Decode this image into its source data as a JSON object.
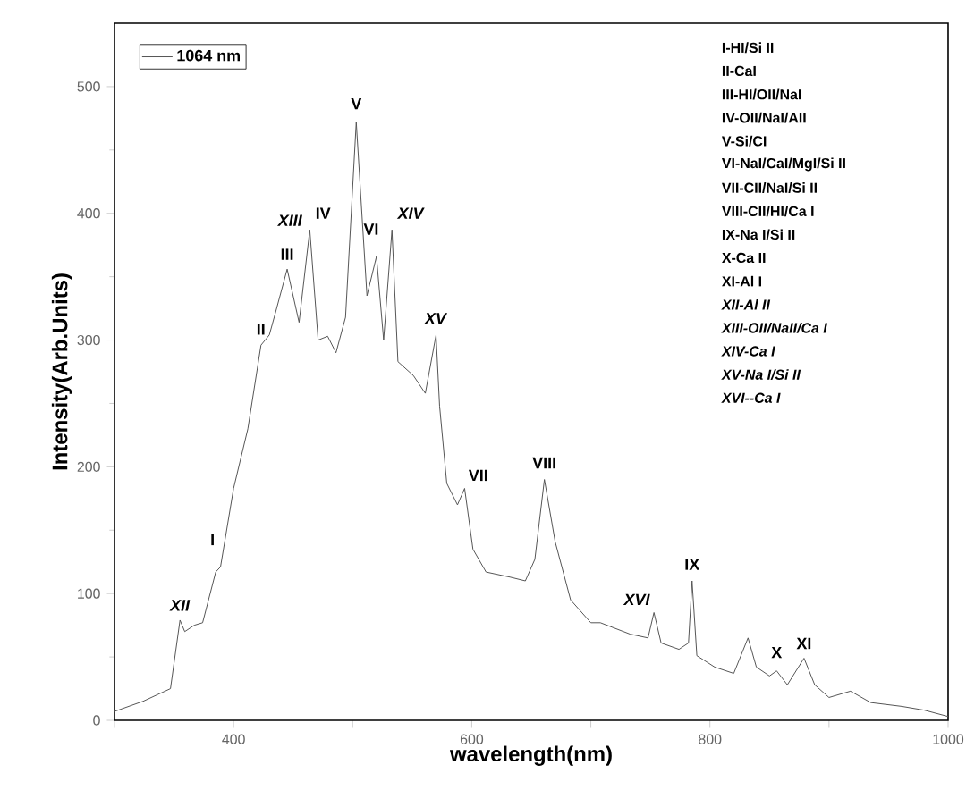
{
  "chart_data": {
    "type": "line",
    "xlabel": "wavelength(nm)",
    "ylabel": "Intensity(Arb.Units)",
    "xlim": [
      300,
      1000
    ],
    "ylim": [
      0,
      550
    ],
    "xticks": [
      {
        "value": 300,
        "label": null
      },
      400,
      {
        "value": 500,
        "label": null
      },
      600,
      {
        "value": 700,
        "label": null
      },
      800,
      {
        "value": 900,
        "label": null
      },
      1000
    ],
    "yticks": [
      0,
      100,
      200,
      300,
      400,
      500
    ],
    "legend": "top left",
    "marker": "none",
    "line_style": "solid",
    "series": [
      {
        "name": "1064 nm",
        "color": "#555555",
        "x": [
          300,
          324,
          347,
          355,
          359,
          367,
          374,
          385,
          389,
          400,
          412,
          423,
          430,
          435,
          445,
          455,
          464,
          471,
          479,
          486,
          494,
          503,
          512,
          520,
          526,
          533,
          538,
          551,
          561,
          570,
          573,
          579,
          588,
          594,
          601,
          612,
          632,
          645,
          653,
          661,
          670,
          683,
          700,
          708,
          733,
          748,
          753,
          759,
          774,
          782,
          785,
          789,
          804,
          820,
          832,
          839,
          850,
          856,
          865,
          879,
          888,
          900,
          918,
          935,
          961,
          980,
          1000
        ],
        "values": [
          7,
          15,
          25,
          79,
          70,
          75,
          77,
          117,
          121,
          183,
          230,
          296,
          304,
          321,
          356,
          314,
          387,
          300,
          303,
          290,
          318,
          472,
          335,
          366,
          300,
          387,
          283,
          272,
          258,
          304,
          248,
          187,
          170,
          183,
          135,
          117,
          113,
          110,
          127,
          190,
          141,
          95,
          77,
          77,
          68,
          65,
          85,
          61,
          56,
          61,
          110,
          51,
          42,
          37,
          65,
          42,
          35,
          39,
          28,
          49,
          28,
          18,
          23,
          14,
          11,
          8,
          3
        ]
      }
    ],
    "annotations": [
      {
        "text": "I",
        "x": 389,
        "y": 121
      },
      {
        "text": "II",
        "x": 430,
        "y": 304
      },
      {
        "text": "III",
        "x": 445,
        "y": 356
      },
      {
        "text": "*XIII*",
        "x": 464,
        "y": 387
      },
      {
        "text": "IV",
        "x": 464,
        "y": 387
      },
      {
        "text": "V",
        "x": 503,
        "y": 472
      },
      {
        "text": "VI",
        "x": 520,
        "y": 366
      },
      {
        "text": "*XIV*",
        "x": 533,
        "y": 387
      },
      {
        "text": "*XV*",
        "x": 570,
        "y": 304
      },
      {
        "text": "VII",
        "x": 594,
        "y": 183
      },
      {
        "text": "VIII",
        "x": 661,
        "y": 190
      },
      {
        "text": "*XVI*",
        "x": 753,
        "y": 85
      },
      {
        "text": "IX",
        "x": 785,
        "y": 110
      },
      {
        "text": "X",
        "x": 856,
        "y": 39
      },
      {
        "text": "XI",
        "x": 879,
        "y": 49
      },
      {
        "text": "*XII*",
        "x": 355,
        "y": 79
      },
      "I-HI/Si II",
      "II-CaI",
      "III-HI/OII/NaI",
      "IV-OII/NaI/AII",
      "V-Si/CI",
      "VI-NaI/CaI/MgI/Si II",
      "VII-CII/NaI/Si II",
      "VIII-CII/HI/Ca I",
      "IX-Na I/Si II",
      "X-Ca II",
      "XI-Al I",
      "*XII-Al II*",
      "*XIII-OII/NaII/Ca I*",
      "*XIV-Ca I*",
      "*XV-Na I/Si II*",
      "*XVI--Ca I*"
    ]
  }
}
